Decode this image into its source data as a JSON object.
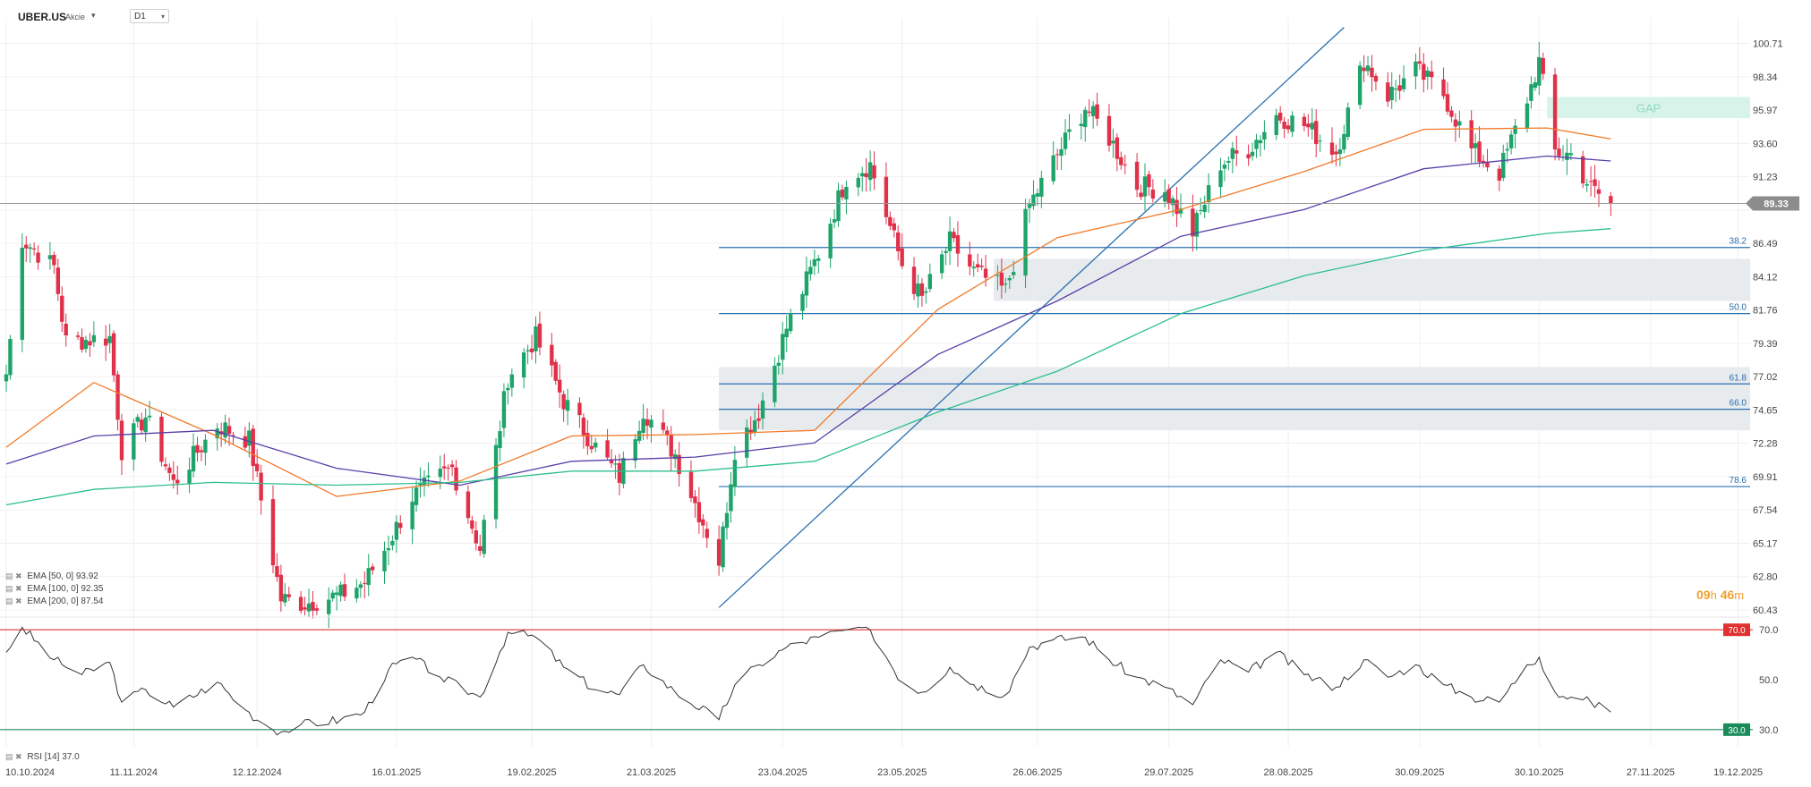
{
  "header": {
    "symbol": "UBER.US",
    "instrument_type": "Akcie",
    "dropdown_icon": "chevron-down-icon",
    "timeframe": "D1"
  },
  "legend": [
    {
      "label": "EMA",
      "params": "[50, 0]",
      "value": "93.92",
      "color": "#f07a2a"
    },
    {
      "label": "EMA",
      "params": "[100, 0]",
      "value": "92.35",
      "color": "#5a3fa8"
    },
    {
      "label": "EMA",
      "params": "[200, 0]",
      "value": "87.54",
      "color": "#2cbf8e"
    }
  ],
  "rsi_legend": {
    "label": "RSI",
    "params": "[14]",
    "value": "37.0"
  },
  "timer": {
    "hours": "09",
    "h": "h",
    "minutes": "46",
    "m": "m"
  },
  "chart_data": {
    "type": "candlestick",
    "ylim": [
      60.43,
      101.89
    ],
    "y_ticks": [
      "100.71",
      "98.34",
      "95.97",
      "93.60",
      "91.23",
      "88.86",
      "86.49",
      "84.12",
      "81.76",
      "79.39",
      "77.02",
      "74.65",
      "72.28",
      "69.91",
      "67.54",
      "65.17",
      "62.80",
      "60.43"
    ],
    "x_ticks": [
      "10.10.2024",
      "11.11.2024",
      "12.12.2024",
      "16.01.2025",
      "19.02.2025",
      "21.03.2025",
      "23.04.2025",
      "23.05.2025",
      "26.06.2025",
      "29.07.2025",
      "28.08.2025",
      "30.09.2025",
      "30.10.2025",
      "27.11.2025",
      "19.12.2025"
    ],
    "x_range": [
      "2024-10-10",
      "2025-12-22"
    ],
    "last_price": "89.33",
    "last_price_value": 89.33,
    "ohlc_anchor": [
      [
        "2024-10-10",
        77.2
      ],
      [
        "2024-10-14",
        86.8
      ],
      [
        "2024-10-22",
        84.8
      ],
      [
        "2024-10-25",
        79.5
      ],
      [
        "2024-11-05",
        79.8
      ],
      [
        "2024-11-08",
        71.8
      ],
      [
        "2024-11-14",
        74.2
      ],
      [
        "2024-11-21",
        69.4
      ],
      [
        "2024-12-02",
        73.6
      ],
      [
        "2024-12-10",
        72.5
      ],
      [
        "2024-12-18",
        61.2
      ],
      [
        "2024-12-24",
        60.9
      ],
      [
        "2025-01-02",
        61.5
      ],
      [
        "2025-01-08",
        62.4
      ],
      [
        "2025-01-14",
        65.2
      ],
      [
        "2025-01-20",
        68.5
      ],
      [
        "2025-01-30",
        70.5
      ],
      [
        "2025-02-06",
        64.8
      ],
      [
        "2025-02-13",
        77.0
      ],
      [
        "2025-02-20",
        79.8
      ],
      [
        "2025-02-27",
        75.3
      ],
      [
        "2025-03-07",
        72.0
      ],
      [
        "2025-03-13",
        69.9
      ],
      [
        "2025-03-19",
        74.7
      ],
      [
        "2025-03-27",
        71.5
      ],
      [
        "2025-04-07",
        63.9
      ],
      [
        "2025-04-11",
        71.9
      ],
      [
        "2025-04-17",
        74.5
      ],
      [
        "2025-04-24",
        80.5
      ],
      [
        "2025-05-02",
        85.8
      ],
      [
        "2025-05-09",
        91.2
      ],
      [
        "2025-05-15",
        92.1
      ],
      [
        "2025-05-23",
        85.0
      ],
      [
        "2025-05-28",
        82.5
      ],
      [
        "2025-06-04",
        86.6
      ],
      [
        "2025-06-10",
        84.5
      ],
      [
        "2025-06-18",
        83.1
      ],
      [
        "2025-06-24",
        89.2
      ],
      [
        "2025-06-30",
        92.3
      ],
      [
        "2025-07-08",
        96.2
      ],
      [
        "2025-07-14",
        94.0
      ],
      [
        "2025-07-21",
        90.6
      ],
      [
        "2025-07-28",
        90.3
      ],
      [
        "2025-08-04",
        87.3
      ],
      [
        "2025-08-11",
        92.2
      ],
      [
        "2025-08-18",
        93.2
      ],
      [
        "2025-08-25",
        95.6
      ],
      [
        "2025-09-01",
        94.9
      ],
      [
        "2025-09-09",
        93.0
      ],
      [
        "2025-09-16",
        99.5
      ],
      [
        "2025-09-22",
        97.0
      ],
      [
        "2025-09-29",
        98.8
      ],
      [
        "2025-10-06",
        97.1
      ],
      [
        "2025-10-13",
        93.1
      ],
      [
        "2025-10-20",
        91.5
      ],
      [
        "2025-10-27",
        96.8
      ],
      [
        "2025-10-30",
        99.4
      ],
      [
        "2025-11-03",
        93.0
      ],
      [
        "2025-11-07",
        92.8
      ],
      [
        "2025-11-12",
        90.4
      ],
      [
        "2025-11-17",
        89.33
      ]
    ],
    "series": [
      {
        "name": "EMA [50, 0]",
        "color": "#f07a2a",
        "values": [
          [
            "2024-10-10",
            72.0
          ],
          [
            "2024-11-01",
            76.6
          ],
          [
            "2024-12-01",
            72.9
          ],
          [
            "2025-01-01",
            68.5
          ],
          [
            "2025-02-01",
            69.6
          ],
          [
            "2025-03-01",
            72.8
          ],
          [
            "2025-04-01",
            72.9
          ],
          [
            "2025-05-01",
            73.2
          ],
          [
            "2025-06-01",
            81.8
          ],
          [
            "2025-07-01",
            86.9
          ],
          [
            "2025-08-01",
            88.9
          ],
          [
            "2025-09-01",
            91.6
          ],
          [
            "2025-10-01",
            94.6
          ],
          [
            "2025-11-01",
            94.7
          ],
          [
            "2025-11-17",
            93.92
          ]
        ]
      },
      {
        "name": "EMA [100, 0]",
        "color": "#5a3fa8",
        "values": [
          [
            "2024-10-10",
            70.8
          ],
          [
            "2024-11-01",
            72.8
          ],
          [
            "2024-12-01",
            73.2
          ],
          [
            "2025-01-01",
            70.5
          ],
          [
            "2025-02-01",
            69.3
          ],
          [
            "2025-03-01",
            71.0
          ],
          [
            "2025-04-01",
            71.3
          ],
          [
            "2025-05-01",
            72.3
          ],
          [
            "2025-06-01",
            78.6
          ],
          [
            "2025-07-01",
            82.4
          ],
          [
            "2025-08-01",
            87.0
          ],
          [
            "2025-09-01",
            88.9
          ],
          [
            "2025-10-01",
            91.8
          ],
          [
            "2025-11-01",
            92.7
          ],
          [
            "2025-11-17",
            92.35
          ]
        ]
      },
      {
        "name": "EMA [200, 0]",
        "color": "#2cbf8e",
        "values": [
          [
            "2024-10-10",
            67.9
          ],
          [
            "2024-11-01",
            69.0
          ],
          [
            "2024-12-01",
            69.5
          ],
          [
            "2025-01-01",
            69.3
          ],
          [
            "2025-02-01",
            69.5
          ],
          [
            "2025-03-01",
            70.3
          ],
          [
            "2025-04-01",
            70.3
          ],
          [
            "2025-05-01",
            71.0
          ],
          [
            "2025-06-01",
            74.5
          ],
          [
            "2025-07-01",
            77.4
          ],
          [
            "2025-08-01",
            81.5
          ],
          [
            "2025-09-01",
            84.2
          ],
          [
            "2025-10-01",
            86.0
          ],
          [
            "2025-11-01",
            87.2
          ],
          [
            "2025-11-17",
            87.54
          ]
        ]
      }
    ],
    "fibonacci": {
      "start_date": "2025-04-07",
      "levels": [
        {
          "label": "38.2",
          "value": 86.2
        },
        {
          "label": "50.0",
          "value": 81.5
        },
        {
          "label": "61.8",
          "value": 76.5
        },
        {
          "label": "66.0",
          "value": 74.7
        },
        {
          "label": "78.6",
          "value": 69.2
        }
      ]
    },
    "trendline": {
      "from": [
        "2025-04-07",
        60.6
      ],
      "to": [
        "2025-09-11",
        101.85
      ]
    },
    "zones": [
      {
        "label": "GAP",
        "from": "2025-11-01",
        "to": "2025-12-22",
        "low": 95.4,
        "high": 96.9,
        "color": "#d8f3ea",
        "text_color": "#8fd8bb"
      },
      {
        "label": "",
        "from": "2025-06-15",
        "to": "2025-12-22",
        "low": 82.4,
        "high": 85.4,
        "color": "#e8ebee"
      },
      {
        "label": "",
        "from": "2025-04-07",
        "to": "2025-12-22",
        "low": 73.2,
        "high": 77.7,
        "color": "#e8ebee"
      }
    ],
    "rsi": {
      "name": "RSI [14]",
      "ylim": [
        26.0,
        71.5
      ],
      "levels": [
        {
          "label": "70.0",
          "value": 70.0,
          "color": "#e03030"
        },
        {
          "label": "30.0",
          "value": 30.0,
          "color": "#1a8c5a"
        }
      ],
      "tick_labels": [
        "70.0",
        "50.0",
        "30.0"
      ],
      "values": [
        [
          "2024-10-10",
          61
        ],
        [
          "2024-10-14",
          71
        ],
        [
          "2024-10-22",
          58
        ],
        [
          "2024-10-29",
          52
        ],
        [
          "2024-11-05",
          57
        ],
        [
          "2024-11-08",
          41
        ],
        [
          "2024-11-14",
          46
        ],
        [
          "2024-11-21",
          39
        ],
        [
          "2024-12-02",
          49
        ],
        [
          "2024-12-09",
          38
        ],
        [
          "2024-12-13",
          33
        ],
        [
          "2024-12-18",
          29
        ],
        [
          "2024-12-23",
          32
        ],
        [
          "2025-01-02",
          34
        ],
        [
          "2025-01-08",
          37
        ],
        [
          "2025-01-14",
          54
        ],
        [
          "2025-01-20",
          59
        ],
        [
          "2025-01-27",
          51
        ],
        [
          "2025-02-06",
          43
        ],
        [
          "2025-02-13",
          69
        ],
        [
          "2025-02-20",
          67
        ],
        [
          "2025-02-27",
          55
        ],
        [
          "2025-03-07",
          46
        ],
        [
          "2025-03-13",
          44
        ],
        [
          "2025-03-19",
          56
        ],
        [
          "2025-03-27",
          45
        ],
        [
          "2025-04-07",
          34
        ],
        [
          "2025-04-11",
          48
        ],
        [
          "2025-04-17",
          56
        ],
        [
          "2025-04-24",
          63
        ],
        [
          "2025-05-02",
          67
        ],
        [
          "2025-05-09",
          70
        ],
        [
          "2025-05-15",
          70
        ],
        [
          "2025-05-23",
          49
        ],
        [
          "2025-05-28",
          45
        ],
        [
          "2025-06-04",
          55
        ],
        [
          "2025-06-10",
          48
        ],
        [
          "2025-06-18",
          44
        ],
        [
          "2025-06-24",
          63
        ],
        [
          "2025-06-30",
          66
        ],
        [
          "2025-07-08",
          67
        ],
        [
          "2025-07-14",
          58
        ],
        [
          "2025-07-21",
          51
        ],
        [
          "2025-07-28",
          47
        ],
        [
          "2025-08-04",
          40
        ],
        [
          "2025-08-11",
          58
        ],
        [
          "2025-08-18",
          53
        ],
        [
          "2025-08-25",
          61
        ],
        [
          "2025-09-01",
          52
        ],
        [
          "2025-09-09",
          47
        ],
        [
          "2025-09-16",
          58
        ],
        [
          "2025-09-22",
          51
        ],
        [
          "2025-09-29",
          56
        ],
        [
          "2025-10-06",
          48
        ],
        [
          "2025-10-13",
          43
        ],
        [
          "2025-10-20",
          41
        ],
        [
          "2025-10-27",
          56
        ],
        [
          "2025-10-30",
          59
        ],
        [
          "2025-11-03",
          45
        ],
        [
          "2025-11-07",
          43
        ],
        [
          "2025-11-12",
          41
        ],
        [
          "2025-11-17",
          37
        ]
      ]
    }
  }
}
